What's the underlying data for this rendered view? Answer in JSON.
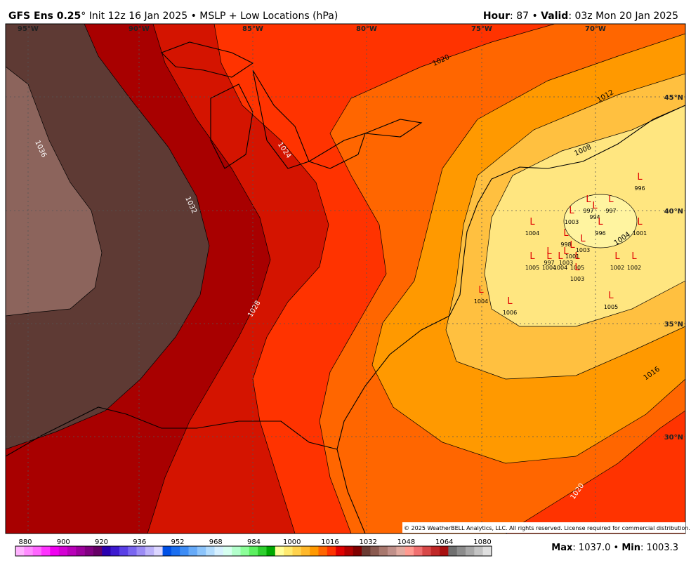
{
  "header": {
    "title_bold": "GFS Ens 0.25",
    "title_rest": "° Init 12z 16 Jan 2025 • MSLP + Low Locations (hPa)",
    "hour_label": "Hour",
    "hour_value": ": 87 • ",
    "valid_label": "Valid",
    "valid_value": ": 03z Mon 20 Jan 2025"
  },
  "map": {
    "longitudes": [
      "95°W",
      "90°W",
      "85°W",
      "80°W",
      "75°W",
      "70°W"
    ],
    "latitudes": [
      "45°N",
      "40°N",
      "35°N",
      "30°N"
    ],
    "contour_labels": [
      1036,
      1032,
      1028,
      1024,
      1020,
      1016,
      1012,
      1008,
      1004,
      1020
    ],
    "lows": [
      {
        "symbol": "L",
        "pressure": 996
      },
      {
        "symbol": "L",
        "pressure": 997
      },
      {
        "symbol": "L",
        "pressure": 997
      },
      {
        "symbol": "L",
        "pressure": 994
      },
      {
        "symbol": "L",
        "pressure": 1003
      },
      {
        "symbol": "L",
        "pressure": 996
      },
      {
        "symbol": "L",
        "pressure": 1004
      },
      {
        "symbol": "L",
        "pressure": 1001
      },
      {
        "symbol": "L",
        "pressure": 998
      },
      {
        "symbol": "L",
        "pressure": 1003
      },
      {
        "symbol": "L",
        "pressure": 1001
      },
      {
        "symbol": "L",
        "pressure": 997
      },
      {
        "symbol": "L",
        "pressure": 1003
      },
      {
        "symbol": "L",
        "pressure": 1005
      },
      {
        "symbol": "L",
        "pressure": 1004
      },
      {
        "symbol": "L",
        "pressure": 1004
      },
      {
        "symbol": "L",
        "pressure": 1005
      },
      {
        "symbol": "L",
        "pressure": 1002
      },
      {
        "symbol": "L",
        "pressure": 1002
      },
      {
        "symbol": "L",
        "pressure": 1003
      },
      {
        "symbol": "L",
        "pressure": 1004
      },
      {
        "symbol": "L",
        "pressure": 1006
      },
      {
        "symbol": "L",
        "pressure": 1005
      }
    ],
    "copyright": "© 2025 WeatherBELL Analytics, LLC. All rights reserved. License required for commercial distribution."
  },
  "colorbar": {
    "labels": [
      880,
      900,
      920,
      936,
      952,
      968,
      984,
      1000,
      1016,
      1032,
      1048,
      1064,
      1080
    ],
    "colors": [
      "#ffb3ff",
      "#ff8cff",
      "#ff66ff",
      "#ff33ff",
      "#f000f0",
      "#d400d4",
      "#b800b8",
      "#9c009c",
      "#800080",
      "#660066",
      "#2a00b0",
      "#3d1ad0",
      "#5a40e6",
      "#7a66f0",
      "#9c8cf5",
      "#bdb3fa",
      "#dcd6ff",
      "#0050e6",
      "#1a6ef0",
      "#3d8cf5",
      "#66aaf8",
      "#8cc4fb",
      "#b3dcfd",
      "#d6f0ff",
      "#d6fff0",
      "#b3ffcc",
      "#8cff99",
      "#5cf060",
      "#2fd02f",
      "#00a800",
      "#ffff99",
      "#ffea70",
      "#ffd24d",
      "#ffb82a",
      "#ff9900",
      "#ff6600",
      "#ff3300",
      "#e00000",
      "#b00000",
      "#800000",
      "#6a3b33",
      "#8a5a50",
      "#a8786e",
      "#c0908a",
      "#e0aaa0",
      "#ff9a90",
      "#f07070",
      "#d84848",
      "#c02828",
      "#a81010",
      "#707070",
      "#8c8c8c",
      "#a8a8a8",
      "#c4c4c4",
      "#e0e0e0"
    ]
  },
  "footer": {
    "max_label": "Max",
    "max_value": ": 1037.0 • ",
    "min_label": "Min",
    "min_value": ": 1003.3"
  }
}
